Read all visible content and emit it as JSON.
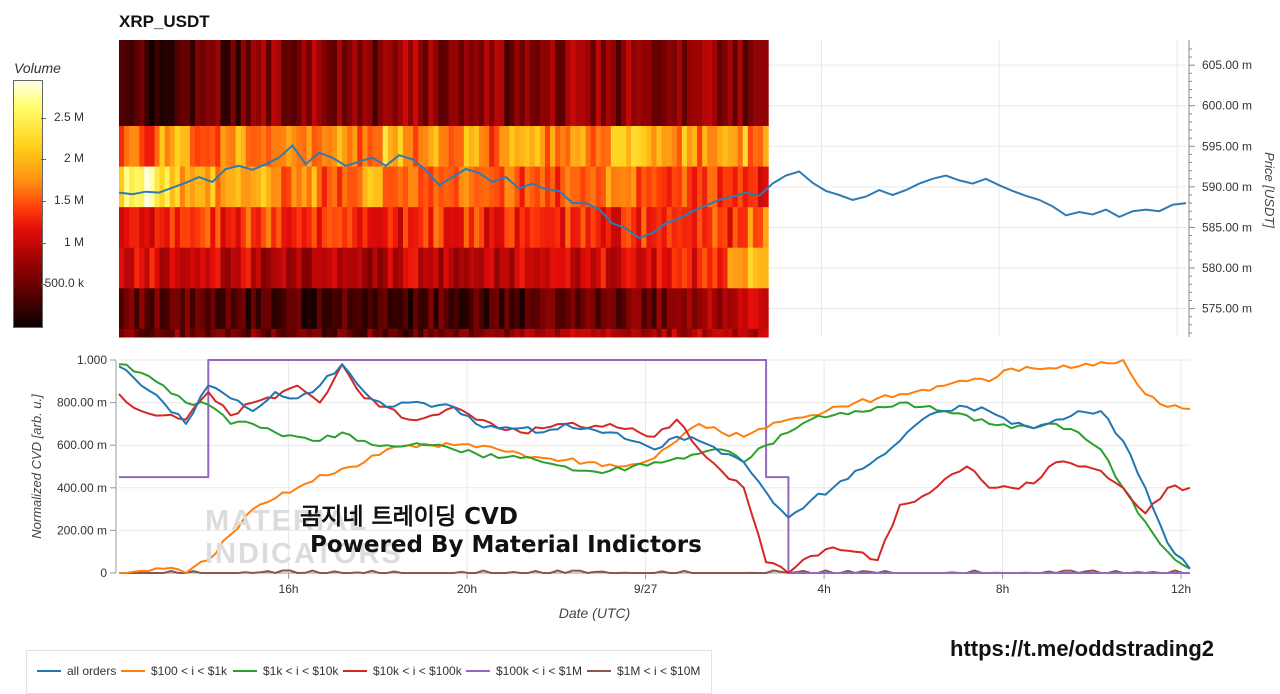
{
  "title": "XRP_USDT",
  "colorbar": {
    "title": "Volume",
    "ticks": [
      {
        "label": "2.5 M",
        "value": 2500000
      },
      {
        "label": "2 M",
        "value": 2000000
      },
      {
        "label": "1.5 M",
        "value": 1500000
      },
      {
        "label": "1 M",
        "value": 1000000
      },
      {
        "label": "500.0 k",
        "value": 500000
      }
    ],
    "max": 2950000
  },
  "overlay": {
    "line1": "곰지네 트레이딩 CVD",
    "line2": "Powered By Material Indictors"
  },
  "watermark": {
    "line1": "MATERIAL",
    "line2": "INDICATORS"
  },
  "link": "https://t.me/oddstrading2",
  "colors": {
    "all orders": "#1f77b4",
    "$100 < i < $1k": "#ff7f0e",
    "$1k < i < $10k": "#2ca02c",
    "$10k < i < $100k": "#d62728",
    "$100k < i < $1M": "#9467bd",
    "$1M < i < $10M": "#8c564b",
    "grid": "#e9e9e9"
  },
  "chart_data": [
    {
      "type": "heatmap",
      "title": "XRP_USDT",
      "ylabel": "Price [USDT]",
      "y_ticks": [
        "605.00 m",
        "600.00 m",
        "595.00 m",
        "590.00 m",
        "585.00 m",
        "580.00 m",
        "575.00 m"
      ],
      "ylim": [
        0.5715,
        0.6081
      ],
      "price_bands": [
        0.5975,
        0.5925,
        0.5875,
        0.5825,
        0.5775,
        0.5725
      ],
      "price_band_top": 0.6025,
      "heatmap_intensity_rows": [
        [
          0.12,
          0.1,
          0.15,
          0.12,
          0.18,
          0.14,
          0.2,
          0.25,
          0.18,
          0.3,
          0.22,
          0.28,
          0.2,
          0.26,
          0.32,
          0.24,
          0.22,
          0.3,
          0.26,
          0.2,
          0.28,
          0.24,
          0.3,
          0.26,
          0.22,
          0.28,
          0.2,
          0.24,
          0.3,
          0.26,
          0.22,
          0.28
        ],
        [
          0.62,
          0.58,
          0.7,
          0.66,
          0.6,
          0.72,
          0.68,
          0.64,
          0.74,
          0.66,
          0.7,
          0.62,
          0.68,
          0.76,
          0.64,
          0.7,
          0.66,
          0.72,
          0.6,
          0.68,
          0.74,
          0.66,
          0.7,
          0.62,
          0.72,
          0.8,
          0.66,
          0.7,
          0.64,
          0.68,
          0.72,
          0.66
        ],
        [
          0.82,
          0.96,
          0.78,
          0.74,
          0.7,
          0.8,
          0.66,
          0.72,
          0.6,
          0.68,
          0.58,
          0.64,
          0.7,
          0.62,
          0.66,
          0.56,
          0.6,
          0.64,
          0.52,
          0.58,
          0.62,
          0.56,
          0.6,
          0.54,
          0.66,
          0.58,
          0.52,
          0.56,
          0.48,
          0.54,
          0.5,
          0.46
        ],
        [
          0.48,
          0.46,
          0.52,
          0.5,
          0.56,
          0.5,
          0.54,
          0.58,
          0.52,
          0.5,
          0.56,
          0.48,
          0.52,
          0.46,
          0.5,
          0.54,
          0.48,
          0.52,
          0.46,
          0.5,
          0.56,
          0.48,
          0.52,
          0.5,
          0.46,
          0.54,
          0.5,
          0.48,
          0.52,
          0.56,
          0.5,
          0.62
        ],
        [
          0.4,
          0.44,
          0.36,
          0.42,
          0.38,
          0.34,
          0.4,
          0.32,
          0.36,
          0.3,
          0.34,
          0.32,
          0.3,
          0.34,
          0.38,
          0.32,
          0.36,
          0.4,
          0.34,
          0.38,
          0.42,
          0.36,
          0.4,
          0.44,
          0.38,
          0.46,
          0.42,
          0.5,
          0.48,
          0.56,
          0.62,
          0.78
        ],
        [
          0.16,
          0.18,
          0.14,
          0.16,
          0.12,
          0.14,
          0.1,
          0.12,
          0.1,
          0.12,
          0.1,
          0.12,
          0.14,
          0.12,
          0.1,
          0.14,
          0.12,
          0.16,
          0.14,
          0.12,
          0.16,
          0.18,
          0.14,
          0.16,
          0.18,
          0.22,
          0.2,
          0.24,
          0.26,
          0.3,
          0.34,
          0.42
        ],
        [
          0.2,
          0.18,
          0.22,
          0.2,
          0.18,
          0.16,
          0.2,
          0.18,
          0.16,
          0.2,
          0.18,
          0.16,
          0.2,
          0.18,
          0.16,
          0.18,
          0.2,
          0.18,
          0.2,
          0.22,
          0.26,
          0.32,
          0.34,
          0.3,
          0.32,
          0.34,
          0.3,
          0.32,
          0.34,
          0.32,
          0.3,
          0.34
        ]
      ],
      "price_line": {
        "name": "price",
        "x": [
          0,
          0.3,
          0.6,
          0.9,
          1.2,
          1.5,
          1.8,
          2.1,
          2.4,
          2.7,
          3.0,
          3.3,
          3.6,
          3.9,
          4.2,
          4.5,
          4.8,
          5.1,
          5.4,
          5.7,
          6.0,
          6.3,
          6.6,
          6.9,
          7.2,
          7.5,
          7.8,
          8.1,
          8.4,
          8.7,
          9.0,
          9.3,
          9.6,
          9.9,
          10.2,
          10.5,
          10.8,
          11.1,
          11.4,
          11.7,
          12.0,
          12.3,
          12.6,
          12.9,
          13.2,
          13.5,
          13.8,
          14.1,
          14.4,
          14.7,
          15.0,
          15.3,
          15.6,
          15.9,
          16.2,
          16.5,
          16.8,
          17.1,
          17.4,
          17.7,
          18.0,
          18.3,
          18.6,
          18.9,
          19.2,
          19.5,
          19.8,
          20.1,
          20.4,
          20.7,
          21.0,
          21.3,
          21.6,
          21.9,
          22.2,
          22.5,
          22.8,
          23.1,
          23.4,
          23.7,
          24.0
        ],
        "y": [
          0.5893,
          0.5891,
          0.5894,
          0.5893,
          0.5899,
          0.5905,
          0.5912,
          0.5906,
          0.5922,
          0.5926,
          0.5921,
          0.5928,
          0.5936,
          0.5951,
          0.5928,
          0.5942,
          0.5936,
          0.5926,
          0.5931,
          0.5936,
          0.5926,
          0.5939,
          0.5934,
          0.5921,
          0.5902,
          0.5912,
          0.5922,
          0.5917,
          0.5906,
          0.5912,
          0.5898,
          0.5904,
          0.5897,
          0.5895,
          0.588,
          0.588,
          0.5872,
          0.5855,
          0.5849,
          0.5837,
          0.5843,
          0.5855,
          0.5861,
          0.587,
          0.5877,
          0.5884,
          0.5888,
          0.5893,
          0.5889,
          0.5904,
          0.5914,
          0.5919,
          0.5905,
          0.5895,
          0.589,
          0.5884,
          0.5888,
          0.5896,
          0.589,
          0.5896,
          0.5904,
          0.591,
          0.5914,
          0.5908,
          0.5904,
          0.591,
          0.5902,
          0.5895,
          0.5889,
          0.5884,
          0.5876,
          0.5865,
          0.5869,
          0.5866,
          0.5872,
          0.5863,
          0.587,
          0.5872,
          0.587,
          0.5878,
          0.588
        ]
      },
      "heatmap_end_x": 14.6
    },
    {
      "type": "line",
      "xlabel": "Date (UTC)",
      "ylabel": "Normalized CVD [arb. u.]",
      "ylim": [
        0,
        1
      ],
      "xlim": [
        0,
        24
      ],
      "x_ticks": [
        {
          "label": "16h",
          "x": 3.8
        },
        {
          "label": "20h",
          "x": 7.8
        },
        {
          "label": "9/27",
          "x": 11.8
        },
        {
          "label": "4h",
          "x": 15.8
        },
        {
          "label": "8h",
          "x": 19.8
        },
        {
          "label": "12h",
          "x": 23.8
        }
      ],
      "y_ticks": [
        {
          "label": "1.000",
          "y": 1.0
        },
        {
          "label": "800.00 m",
          "y": 0.8
        },
        {
          "label": "600.00 m",
          "y": 0.6
        },
        {
          "label": "400.00 m",
          "y": 0.4
        },
        {
          "label": "200.00 m",
          "y": 0.2
        },
        {
          "label": "0",
          "y": 0.0
        }
      ],
      "x": [
        0,
        0.5,
        1,
        1.5,
        2,
        2.5,
        3,
        3.5,
        4,
        4.5,
        5,
        5.5,
        6,
        6.5,
        7,
        7.5,
        8,
        8.5,
        9,
        9.5,
        10,
        10.5,
        11,
        11.5,
        12,
        12.5,
        13,
        13.5,
        14,
        14.5,
        15,
        15.5,
        16,
        16.5,
        17,
        17.5,
        18,
        18.5,
        19,
        19.5,
        20,
        20.5,
        21,
        21.5,
        22,
        22.5,
        23,
        23.5,
        24
      ],
      "series": [
        {
          "name": "all orders",
          "values": [
            0.97,
            0.88,
            0.8,
            0.7,
            0.88,
            0.82,
            0.76,
            0.85,
            0.82,
            0.88,
            0.98,
            0.85,
            0.78,
            0.8,
            0.78,
            0.78,
            0.7,
            0.68,
            0.68,
            0.66,
            0.7,
            0.68,
            0.66,
            0.62,
            0.58,
            0.64,
            0.62,
            0.56,
            0.52,
            0.38,
            0.26,
            0.34,
            0.4,
            0.48,
            0.54,
            0.62,
            0.72,
            0.76,
            0.78,
            0.76,
            0.7,
            0.68,
            0.72,
            0.76,
            0.76,
            0.62,
            0.4,
            0.14,
            0.02
          ]
        },
        {
          "name": "$100 < i < $1k",
          "values": [
            0.0,
            0.01,
            0.02,
            0.0,
            0.06,
            0.18,
            0.3,
            0.35,
            0.4,
            0.46,
            0.49,
            0.52,
            0.58,
            0.6,
            0.6,
            0.6,
            0.59,
            0.58,
            0.56,
            0.54,
            0.53,
            0.52,
            0.51,
            0.51,
            0.54,
            0.62,
            0.7,
            0.66,
            0.64,
            0.68,
            0.72,
            0.74,
            0.78,
            0.8,
            0.82,
            0.84,
            0.86,
            0.88,
            0.9,
            0.9,
            0.96,
            0.96,
            0.96,
            0.97,
            0.99,
            1.0,
            0.84,
            0.78,
            0.77
          ]
        },
        {
          "name": "$1k < i < $10k",
          "values": [
            0.98,
            0.94,
            0.88,
            0.8,
            0.79,
            0.7,
            0.7,
            0.66,
            0.64,
            0.62,
            0.66,
            0.62,
            0.6,
            0.6,
            0.6,
            0.58,
            0.56,
            0.54,
            0.54,
            0.52,
            0.5,
            0.48,
            0.48,
            0.5,
            0.52,
            0.54,
            0.56,
            0.58,
            0.52,
            0.6,
            0.66,
            0.72,
            0.74,
            0.76,
            0.78,
            0.8,
            0.78,
            0.76,
            0.74,
            0.7,
            0.68,
            0.68,
            0.7,
            0.66,
            0.58,
            0.4,
            0.24,
            0.1,
            0.02
          ]
        },
        {
          "name": "$10k < i < $100k",
          "values": [
            0.84,
            0.76,
            0.74,
            0.72,
            0.85,
            0.74,
            0.8,
            0.82,
            0.88,
            0.8,
            0.98,
            0.82,
            0.78,
            0.72,
            0.74,
            0.78,
            0.72,
            0.68,
            0.66,
            0.68,
            0.7,
            0.68,
            0.7,
            0.68,
            0.64,
            0.72,
            0.58,
            0.48,
            0.4,
            0.05,
            0.0,
            0.08,
            0.12,
            0.1,
            0.06,
            0.32,
            0.36,
            0.44,
            0.5,
            0.4,
            0.4,
            0.42,
            0.52,
            0.5,
            0.48,
            0.4,
            0.28,
            0.4,
            0.4
          ]
        },
        {
          "name": "$100k < i < $1M",
          "values": [
            0.45,
            0.45,
            0.45,
            0.45,
            1.0,
            1.0,
            1.0,
            1.0,
            1.0,
            1.0,
            1.0,
            1.0,
            1.0,
            1.0,
            1.0,
            1.0,
            1.0,
            1.0,
            1.0,
            1.0,
            1.0,
            1.0,
            1.0,
            1.0,
            1.0,
            1.0,
            1.0,
            1.0,
            1.0,
            0.45,
            0.0,
            0.0,
            0.0,
            0.0,
            0.0,
            0.0,
            0.0,
            0.0,
            0.0,
            0.0,
            0.0,
            0.0,
            0.0,
            0.0,
            0.0,
            0.0,
            0.0,
            0.0,
            0.0
          ]
        },
        {
          "name": "$1M < i < $10M",
          "values": [
            0,
            0,
            0,
            0,
            0,
            0,
            0,
            0,
            0,
            0,
            0,
            0,
            0,
            0,
            0,
            0,
            0,
            0,
            0,
            0,
            0,
            0,
            0,
            0,
            0,
            0,
            0,
            0,
            0,
            0,
            0,
            0,
            0,
            0,
            0,
            0,
            0,
            0,
            0,
            0,
            0,
            0,
            0,
            0,
            0,
            0,
            0,
            0,
            0
          ]
        }
      ],
      "legend": [
        "all orders",
        "$100 < i < $1k",
        "$1k < i < $10k",
        "$10k < i < $100k",
        "$100k < i < $1M",
        "$1M < i < $10M"
      ],
      "legend_position": "bottom-left"
    }
  ]
}
